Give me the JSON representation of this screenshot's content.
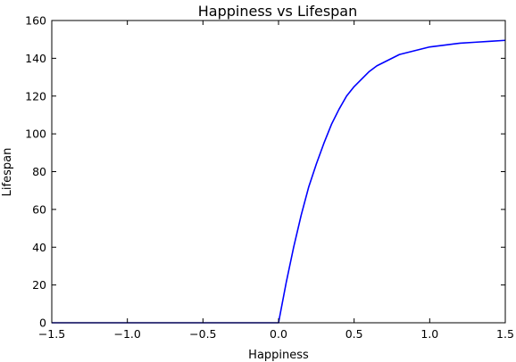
{
  "chart_data": {
    "type": "line",
    "title": "Happiness vs Lifespan",
    "xlabel": "Happiness",
    "ylabel": "Lifespan",
    "xlim": [
      -1.5,
      1.5
    ],
    "ylim": [
      0,
      160
    ],
    "xticks": [
      -1.5,
      -1.0,
      -0.5,
      0.0,
      0.5,
      1.0,
      1.5
    ],
    "xtick_labels": [
      "−1.5",
      "−1.0",
      "−0.5",
      "0.0",
      "0.5",
      "1.0",
      "1.5"
    ],
    "yticks": [
      0,
      20,
      40,
      60,
      80,
      100,
      120,
      140,
      160
    ],
    "ytick_labels": [
      "0",
      "20",
      "40",
      "60",
      "80",
      "100",
      "120",
      "140",
      "160"
    ],
    "grid": false,
    "series": [
      {
        "color": "#0000ff",
        "x": [
          -1.5,
          -1.25,
          -1.0,
          -0.75,
          -0.5,
          -0.25,
          0.0,
          0.05,
          0.1,
          0.15,
          0.2,
          0.25,
          0.3,
          0.35,
          0.4,
          0.45,
          0.5,
          0.55,
          0.6,
          0.65,
          0.7,
          0.75,
          0.8,
          0.9,
          1.0,
          1.1,
          1.2,
          1.3,
          1.4,
          1.5
        ],
        "y": [
          0,
          0,
          0,
          0,
          0,
          0,
          0,
          21,
          40,
          57,
          72,
          84,
          95,
          105,
          113,
          120,
          125,
          129,
          133,
          136,
          138,
          140,
          142,
          144,
          146,
          147,
          148,
          148.5,
          149,
          149.5
        ]
      }
    ]
  }
}
